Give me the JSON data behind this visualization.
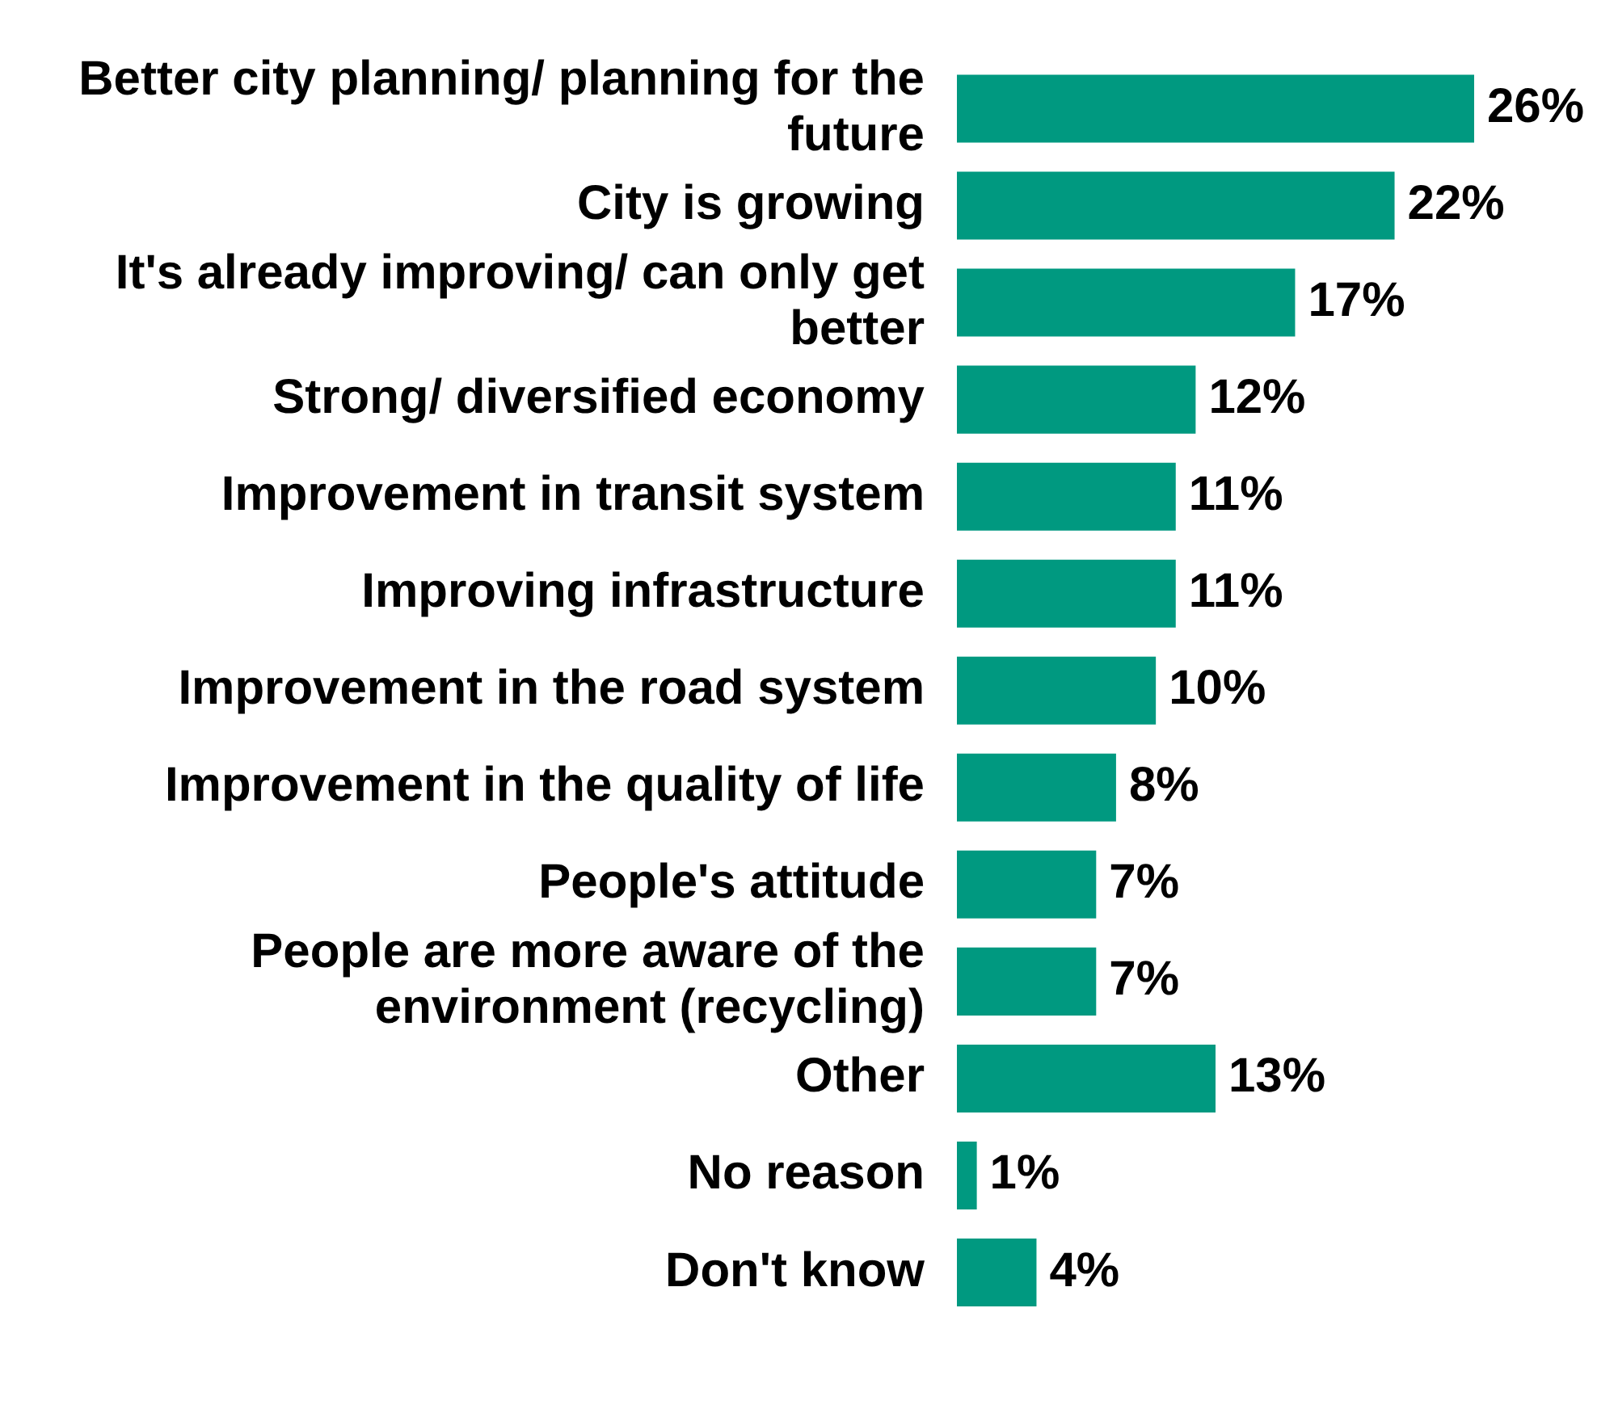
{
  "chart_data": {
    "type": "bar",
    "orientation": "horizontal",
    "categories": [
      "Better city planning/ planning for the future",
      "City is growing",
      "It's already improving/ can only get better",
      "Strong/ diversified economy",
      "Improvement in transit system",
      "Improving infrastructure",
      "Improvement in the road system",
      "Improvement in the quality of life",
      "People's attitude",
      "People are more aware of the environment (recycling)",
      "Other",
      "No reason",
      "Don't know"
    ],
    "values": [
      26,
      22,
      17,
      12,
      11,
      11,
      10,
      8,
      7,
      7,
      13,
      1,
      4
    ],
    "value_labels": [
      "26%",
      "22%",
      "17%",
      "12%",
      "11%",
      "11%",
      "10%",
      "8%",
      "7%",
      "7%",
      "13%",
      "1%",
      "4%"
    ],
    "color": "#009980",
    "tick_labels": "y",
    "grid": false,
    "legend": false
  }
}
